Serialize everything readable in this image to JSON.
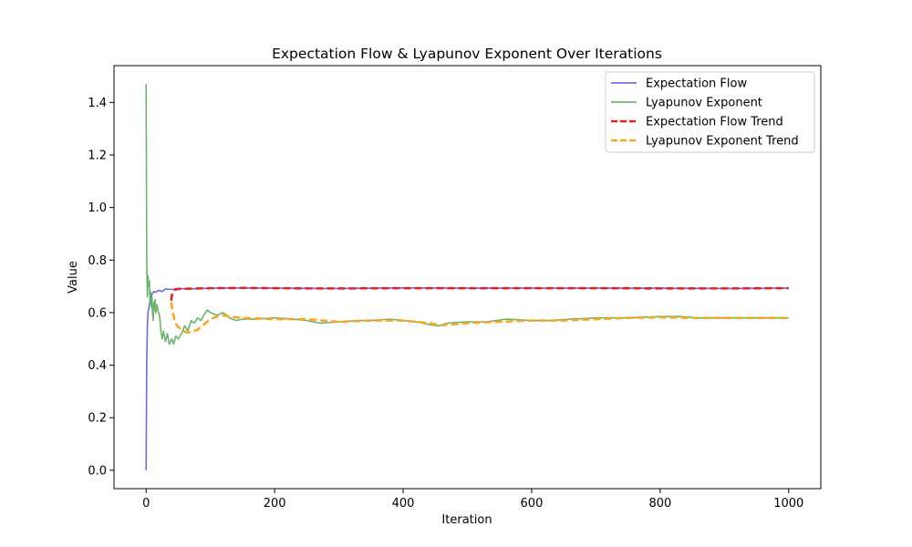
{
  "chart_data": {
    "type": "line",
    "title": "Expectation Flow & Lyapunov Exponent Over Iterations",
    "xlabel": "Iteration",
    "ylabel": "Value",
    "xlim": [
      -50,
      1050
    ],
    "ylim": [
      -0.07,
      1.54
    ],
    "xticks": [
      0,
      200,
      400,
      600,
      800,
      1000
    ],
    "yticks": [
      0.0,
      0.2,
      0.4,
      0.6,
      0.8,
      1.0,
      1.2,
      1.4
    ],
    "legend_position": "upper right",
    "grid": false,
    "series": [
      {
        "name": "Expectation Flow",
        "color": "#5a5ae6",
        "style": "solid",
        "x": [
          0,
          1,
          2,
          3,
          5,
          7,
          9,
          12,
          15,
          20,
          25,
          30,
          40,
          50,
          70,
          100,
          150,
          200,
          300,
          400,
          500,
          600,
          700,
          800,
          900,
          1000
        ],
        "y": [
          0.0,
          0.42,
          0.55,
          0.6,
          0.63,
          0.655,
          0.67,
          0.68,
          0.678,
          0.685,
          0.68,
          0.69,
          0.688,
          0.692,
          0.69,
          0.693,
          0.694,
          0.693,
          0.692,
          0.694,
          0.693,
          0.693,
          0.693,
          0.693,
          0.692,
          0.693
        ]
      },
      {
        "name": "Lyapunov Exponent",
        "color": "#5cac5c",
        "style": "solid",
        "x": [
          0,
          1,
          2,
          3,
          4,
          5,
          6,
          7,
          8,
          9,
          10,
          11,
          12,
          13,
          14,
          15,
          17,
          19,
          21,
          23,
          25,
          27,
          30,
          33,
          36,
          40,
          43,
          46,
          50,
          55,
          60,
          65,
          70,
          75,
          80,
          85,
          90,
          95,
          100,
          110,
          120,
          130,
          140,
          150,
          170,
          200,
          230,
          250,
          270,
          300,
          330,
          350,
          380,
          400,
          420,
          440,
          455,
          470,
          500,
          530,
          560,
          600,
          630,
          660,
          700,
          750,
          800,
          830,
          860,
          900,
          950,
          1000
        ],
        "y": [
          1.47,
          0.79,
          0.66,
          0.74,
          0.7,
          0.72,
          0.64,
          0.68,
          0.62,
          0.66,
          0.6,
          0.57,
          0.64,
          0.61,
          0.65,
          0.6,
          0.63,
          0.6,
          0.59,
          0.53,
          0.5,
          0.53,
          0.49,
          0.52,
          0.48,
          0.5,
          0.48,
          0.51,
          0.5,
          0.52,
          0.55,
          0.53,
          0.57,
          0.56,
          0.58,
          0.57,
          0.59,
          0.61,
          0.6,
          0.59,
          0.6,
          0.58,
          0.57,
          0.575,
          0.575,
          0.58,
          0.575,
          0.57,
          0.56,
          0.565,
          0.57,
          0.57,
          0.575,
          0.57,
          0.565,
          0.555,
          0.55,
          0.56,
          0.565,
          0.565,
          0.575,
          0.57,
          0.57,
          0.575,
          0.58,
          0.58,
          0.585,
          0.585,
          0.58,
          0.58,
          0.58,
          0.58
        ]
      },
      {
        "name": "Expectation Flow Trend",
        "color": "#e8201c",
        "style": "dashed",
        "x": [
          39,
          40,
          42,
          45,
          50,
          60,
          80,
          100,
          150,
          200,
          250,
          300,
          400,
          500,
          600,
          700,
          800,
          900,
          1000
        ],
        "y": [
          0.645,
          0.665,
          0.68,
          0.687,
          0.69,
          0.691,
          0.692,
          0.693,
          0.694,
          0.693,
          0.692,
          0.692,
          0.693,
          0.693,
          0.693,
          0.693,
          0.692,
          0.692,
          0.693
        ],
        "stroke_width_hint": "thick"
      },
      {
        "name": "Lyapunov Exponent Trend",
        "color": "#ffa31a",
        "style": "dashed",
        "x": [
          39,
          41,
          44,
          48,
          55,
          62,
          70,
          80,
          90,
          100,
          110,
          120,
          130,
          150,
          200,
          250,
          300,
          350,
          400,
          440,
          460,
          500,
          550,
          600,
          650,
          700,
          750,
          800,
          850,
          900,
          950,
          1000
        ],
        "y": [
          0.64,
          0.61,
          0.575,
          0.55,
          0.535,
          0.525,
          0.525,
          0.535,
          0.555,
          0.575,
          0.585,
          0.59,
          0.585,
          0.58,
          0.575,
          0.575,
          0.565,
          0.57,
          0.57,
          0.56,
          0.552,
          0.56,
          0.565,
          0.57,
          0.57,
          0.575,
          0.58,
          0.582,
          0.58,
          0.58,
          0.58,
          0.58
        ]
      }
    ]
  }
}
